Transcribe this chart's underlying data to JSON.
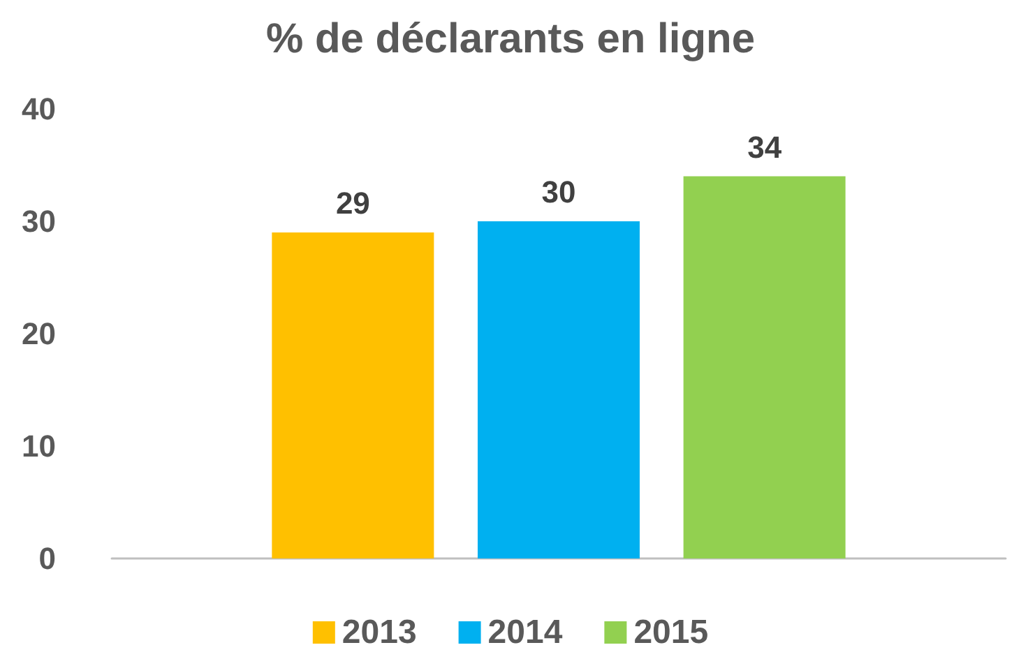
{
  "chart_data": {
    "type": "bar",
    "title": "% de déclarants en ligne",
    "categories": [
      null
    ],
    "series": [
      {
        "name": "2013",
        "color": "#ffc000",
        "values": [
          29
        ]
      },
      {
        "name": "2014",
        "color": "#00b0f0",
        "values": [
          30
        ]
      },
      {
        "name": "2015",
        "color": "#92d050",
        "values": [
          34
        ]
      }
    ],
    "ylim": [
      0,
      40
    ],
    "yticks": [
      0,
      10,
      20,
      30,
      40
    ],
    "grid": false,
    "legend": "bottom",
    "data_labels": true
  }
}
